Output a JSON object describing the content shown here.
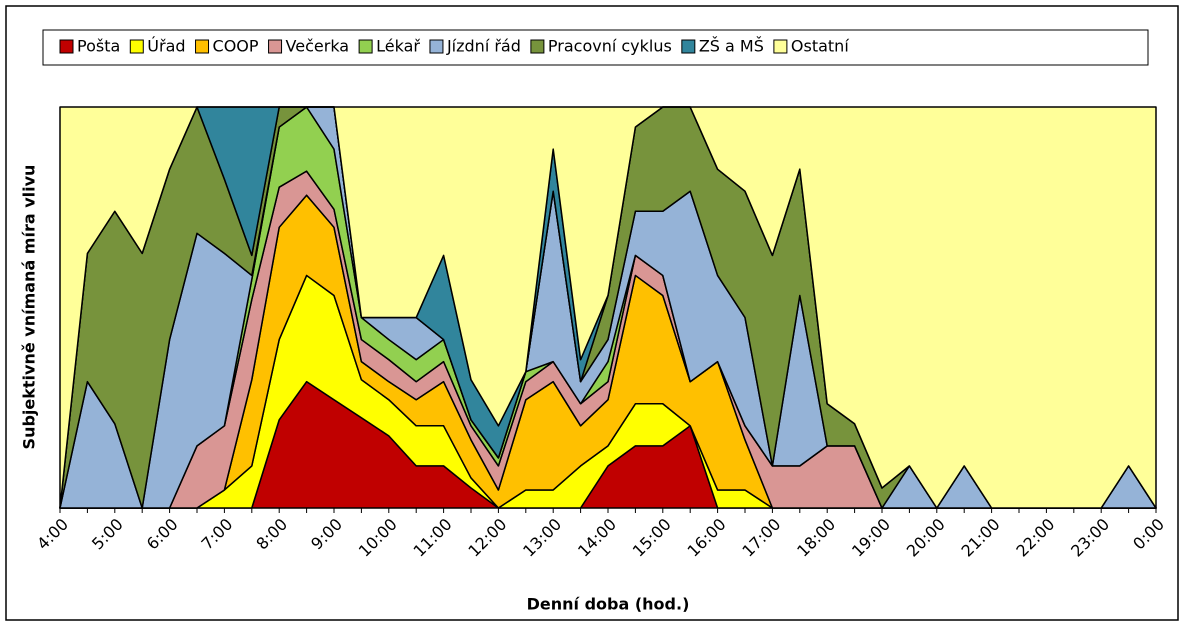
{
  "chart_data": {
    "type": "stacked_area",
    "xlabel": "Denní doba (hod.)",
    "ylabel": "Subjektivně vnímaná míra vlivu",
    "legend": "top",
    "categories": [
      "4:00",
      null,
      "5:00",
      null,
      "6:00",
      null,
      "7:00",
      null,
      "8:00",
      null,
      "9:00",
      null,
      "10:00",
      null,
      "11:00",
      null,
      "12:00",
      null,
      "13:00",
      null,
      "14:00",
      null,
      "15:00",
      null,
      "16:00",
      null,
      "17:00",
      null,
      "18:00",
      null,
      "19:00",
      null,
      "20:00",
      null,
      "21:00",
      null,
      "22:00",
      null,
      "23:00",
      null,
      "0:00"
    ],
    "ylim": [
      0,
      20
    ],
    "series": [
      {
        "name": "Pošta",
        "color": "#c00000",
        "values": [
          0,
          0,
          0,
          0,
          0,
          0,
          0,
          0,
          4.4,
          6.3,
          5.4,
          4.5,
          3.6,
          2.1,
          2.1,
          1.0,
          0,
          0,
          0,
          0,
          2.1,
          3.1,
          3.1,
          4.1,
          0,
          0,
          0,
          0,
          0,
          0,
          0,
          0,
          0,
          0,
          0,
          0,
          0,
          0,
          0,
          0,
          0
        ]
      },
      {
        "name": "Úřad",
        "color": "#ffff00",
        "values": [
          0,
          0,
          0,
          0,
          0,
          0,
          0.9,
          2.1,
          4.0,
          5.3,
          5.2,
          1.9,
          1.8,
          2.0,
          2.0,
          0.5,
          0,
          0.9,
          0.9,
          2.1,
          1.0,
          2.1,
          2.1,
          0,
          0.9,
          0.9,
          0,
          0,
          0,
          0,
          0,
          0,
          0,
          0,
          0,
          0,
          0,
          0,
          0,
          0,
          0
        ]
      },
      {
        "name": "COOP",
        "color": "#ffc000",
        "values": [
          0,
          0,
          0,
          0,
          0,
          0,
          0,
          4.3,
          5.6,
          4.0,
          3.4,
          0.9,
          0.9,
          1.3,
          2.2,
          1.9,
          0.9,
          4.5,
          5.4,
          2.0,
          2.3,
          6.4,
          5.4,
          2.2,
          6.4,
          2.5,
          0,
          0,
          0,
          0,
          0,
          0,
          0,
          0,
          0,
          0,
          0,
          0,
          0,
          0,
          0
        ]
      },
      {
        "name": "Večerka",
        "color": "#d99694",
        "values": [
          0,
          0,
          0,
          0,
          0,
          3.1,
          3.2,
          4.0,
          2.0,
          1.2,
          0.9,
          1.1,
          1.1,
          0.9,
          1.0,
          0.7,
          1.2,
          0.9,
          1.0,
          1.1,
          0.9,
          1.0,
          1.0,
          0,
          0,
          0.7,
          2.1,
          2.1,
          3.1,
          3.1,
          0,
          0,
          0,
          0,
          0,
          0,
          0,
          0,
          0,
          0,
          0
        ]
      },
      {
        "name": "Lékař",
        "color": "#92d050",
        "values": [
          0,
          0,
          0,
          0,
          0,
          0,
          0,
          1.0,
          3.0,
          3.2,
          3.0,
          1.1,
          1.0,
          1.1,
          1.1,
          0.3,
          0.4,
          0.5,
          0,
          0,
          1.0,
          0,
          0,
          0,
          0,
          0,
          0,
          0,
          0,
          0,
          0,
          0,
          0,
          0,
          0,
          0,
          0,
          0,
          0,
          0,
          0
        ]
      },
      {
        "name": "Jízdní řád",
        "color": "#95b3d7",
        "values": [
          0,
          6.3,
          4.2,
          0,
          8.4,
          10.6,
          8.6,
          0.2,
          0,
          0,
          2.1,
          0,
          1.1,
          2.1,
          0,
          0,
          0,
          0,
          8.5,
          1.1,
          1.1,
          2.2,
          3.2,
          9.5,
          4.3,
          5.4,
          0,
          8.5,
          0,
          0,
          0,
          2.1,
          0,
          2.1,
          0,
          0,
          0,
          0,
          0,
          2.1,
          0
        ]
      },
      {
        "name": "Pracovní cyklus",
        "color": "#77933c",
        "values": [
          0,
          6.4,
          10.6,
          12.7,
          8.5,
          6.3,
          3.7,
          1.0,
          1.0,
          0,
          0,
          0,
          0,
          0,
          0,
          0,
          0,
          0,
          0,
          0,
          2.2,
          4.2,
          5.2,
          4.2,
          5.3,
          6.3,
          10.5,
          6.3,
          2.1,
          1.1,
          1.0,
          0,
          0,
          0,
          0,
          0,
          0,
          0,
          0,
          0,
          0
        ]
      },
      {
        "name": "ZŠ a MŠ",
        "color": "#31859c",
        "values": [
          0,
          0,
          0,
          0,
          0,
          0,
          3.6,
          7.4,
          0,
          0,
          0,
          0,
          0,
          0,
          4.2,
          2.0,
          1.6,
          0,
          2.1,
          1.1,
          0,
          0,
          0,
          0,
          0,
          0,
          0,
          0,
          0,
          0,
          0,
          0,
          0,
          0,
          0,
          0,
          0,
          0,
          0,
          0,
          0
        ]
      },
      {
        "name": "Ostatní",
        "color": "#ffff99",
        "values": [
          20,
          7.3,
          5.2,
          7.3,
          3.1,
          0,
          0,
          0,
          0,
          0,
          0,
          10.5,
          10.5,
          10.5,
          7.4,
          13.6,
          15.9,
          13.2,
          2.1,
          12.6,
          9.4,
          1.0,
          0,
          0,
          3.1,
          4.2,
          7.4,
          3.1,
          14.8,
          15.8,
          19.0,
          17.9,
          20,
          17.9,
          20,
          20,
          20,
          20,
          20,
          17.9,
          20
        ]
      }
    ]
  }
}
